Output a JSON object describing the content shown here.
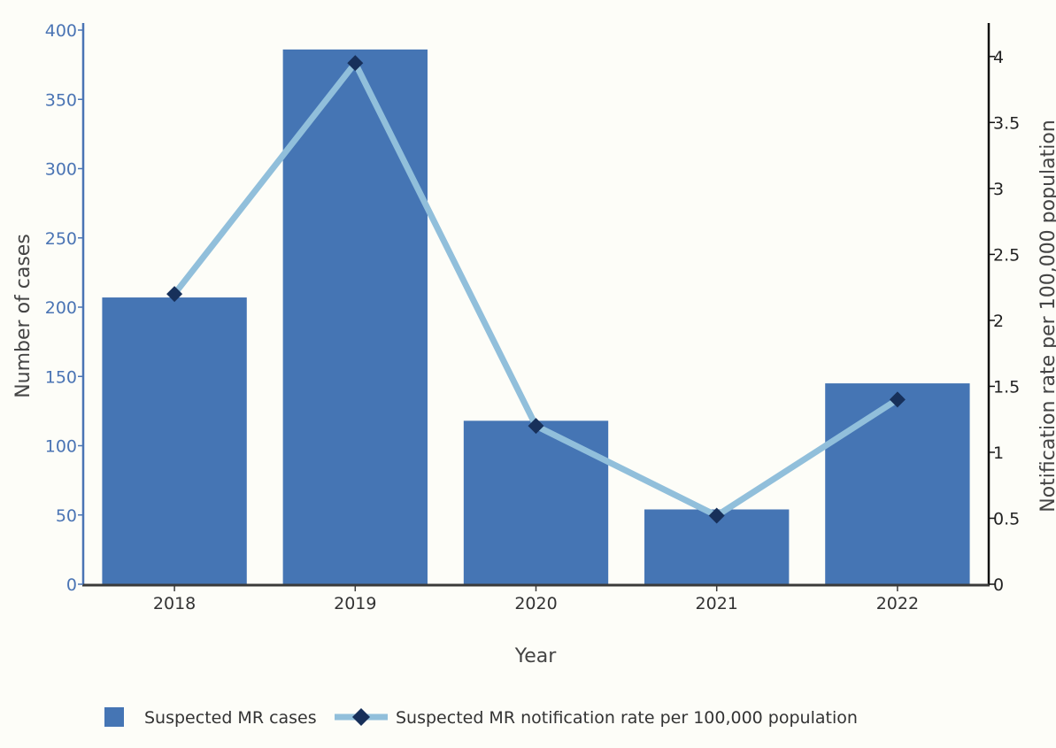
{
  "chart_data": {
    "type": "bar",
    "xlabel": "Year",
    "ylabel": "Number of cases",
    "y2label": "Notification rate per 100,000 population",
    "categories": [
      "2018",
      "2019",
      "2020",
      "2021",
      "2022"
    ],
    "series": [
      {
        "name": "Suspected MR cases",
        "type": "bar",
        "axis": "left",
        "values": [
          207,
          386,
          118,
          54,
          145
        ],
        "color": "#4575b4"
      },
      {
        "name": "Suspected MR notification rate per 100,000 population",
        "type": "line",
        "axis": "right",
        "values": [
          2.2,
          3.95,
          1.2,
          0.52,
          1.4
        ],
        "color": "#91bfdb",
        "marker_color": "#17305a"
      }
    ],
    "ylim": [
      0,
      400
    ],
    "y_ticks": [
      0,
      50,
      100,
      150,
      200,
      250,
      300,
      350,
      400
    ],
    "y2lim": [
      0,
      4.2
    ],
    "y2_ticks": [
      "0",
      "0.5",
      "1",
      "1.5",
      "2",
      "2.5",
      "3",
      "3.5",
      "4"
    ],
    "legend_position": "bottom",
    "grid": false
  }
}
